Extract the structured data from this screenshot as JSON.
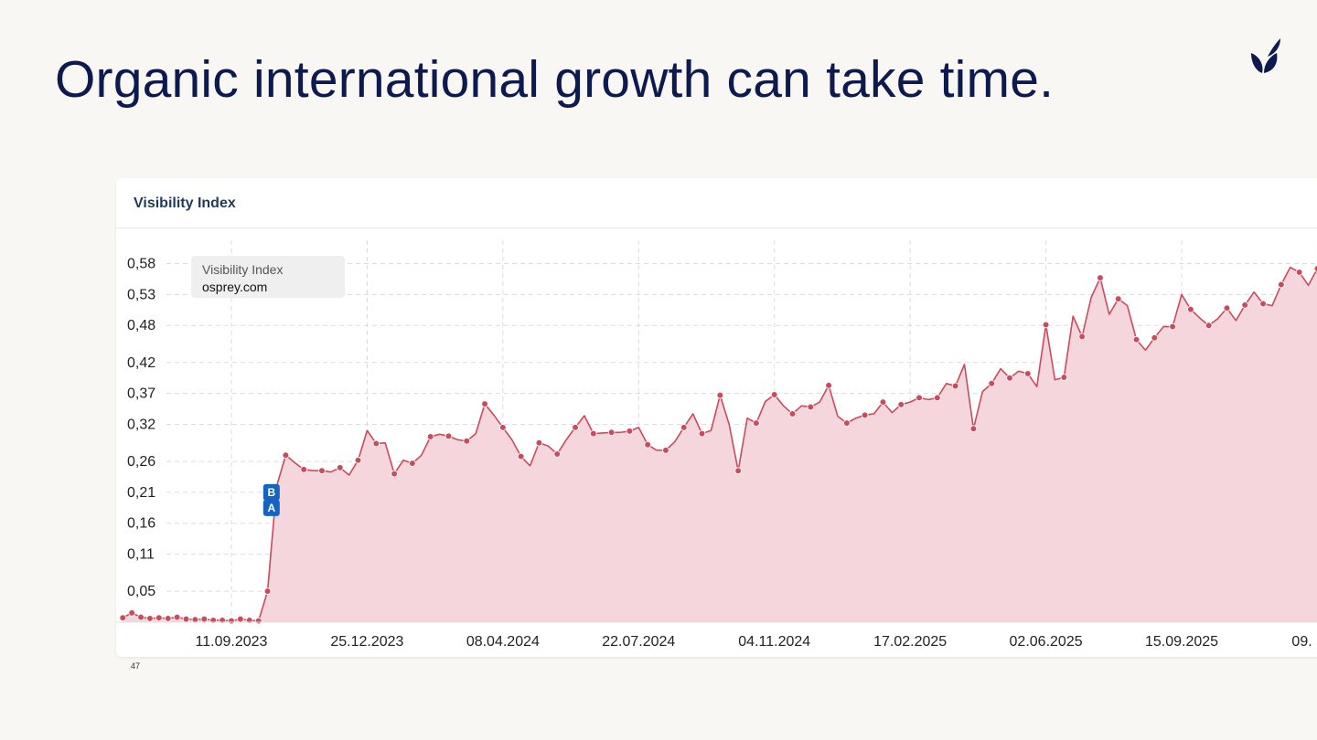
{
  "slide": {
    "title": "Organic international growth can take time.",
    "page_number": "47"
  },
  "colors": {
    "title": "#0d1a4f",
    "line": "#c94b5c",
    "fill": "#f5d6dc",
    "marker": "#1565c0"
  },
  "chart_data": {
    "type": "area",
    "title": "Visibility Index",
    "legend": {
      "name": "Visibility Index",
      "domain": "osprey.com",
      "placement": "top-left"
    },
    "grid": true,
    "y_ticks": [
      "0,05",
      "0,11",
      "0,16",
      "0,21",
      "0,26",
      "0,32",
      "0,37",
      "0,42",
      "0,48",
      "0,53",
      "0,58"
    ],
    "y_tick_values": [
      0.05,
      0.11,
      0.16,
      0.21,
      0.26,
      0.32,
      0.37,
      0.42,
      0.48,
      0.53,
      0.58
    ],
    "ylim": [
      0.0,
      0.6
    ],
    "x_ticks": [
      "11.09.2023",
      "25.12.2023",
      "08.04.2024",
      "22.07.2024",
      "04.11.2024",
      "17.02.2025",
      "02.06.2025",
      "15.09.2025",
      "09."
    ],
    "x_tick_dates": [
      "2023-09-11",
      "2023-12-25",
      "2024-04-08",
      "2024-07-22",
      "2024-11-04",
      "2025-02-17",
      "2025-06-02",
      "2025-09-15",
      "2025-12-29"
    ],
    "xlim": [
      "2023-06-19",
      "2026-01-04"
    ],
    "markers": [
      {
        "label": "B",
        "date": "2023-10-12",
        "value": 0.21
      },
      {
        "label": "A",
        "date": "2023-10-12",
        "value": 0.185
      }
    ],
    "series": [
      {
        "name": "osprey.com",
        "points": [
          [
            "2023-06-19",
            0.007
          ],
          [
            "2023-06-26",
            0.015
          ],
          [
            "2023-07-03",
            0.008
          ],
          [
            "2023-07-10",
            0.006
          ],
          [
            "2023-07-17",
            0.007
          ],
          [
            "2023-07-24",
            0.006
          ],
          [
            "2023-07-31",
            0.008
          ],
          [
            "2023-08-07",
            0.005
          ],
          [
            "2023-08-14",
            0.004
          ],
          [
            "2023-08-21",
            0.005
          ],
          [
            "2023-08-28",
            0.003
          ],
          [
            "2023-09-04",
            0.003
          ],
          [
            "2023-09-11",
            0.002
          ],
          [
            "2023-09-18",
            0.005
          ],
          [
            "2023-09-25",
            0.003
          ],
          [
            "2023-10-02",
            0.002
          ],
          [
            "2023-10-09",
            0.05
          ],
          [
            "2023-10-16",
            0.22
          ],
          [
            "2023-10-23",
            0.27
          ],
          [
            "2023-10-30",
            0.258
          ],
          [
            "2023-11-06",
            0.247
          ],
          [
            "2023-11-13",
            0.245
          ],
          [
            "2023-11-20",
            0.245
          ],
          [
            "2023-11-27",
            0.243
          ],
          [
            "2023-12-04",
            0.25
          ],
          [
            "2023-12-11",
            0.238
          ],
          [
            "2023-12-18",
            0.262
          ],
          [
            "2023-12-25",
            0.31
          ],
          [
            "2024-01-01",
            0.289
          ],
          [
            "2024-01-08",
            0.29
          ],
          [
            "2024-01-15",
            0.24
          ],
          [
            "2024-01-22",
            0.262
          ],
          [
            "2024-01-29",
            0.257
          ],
          [
            "2024-02-05",
            0.27
          ],
          [
            "2024-02-12",
            0.3
          ],
          [
            "2024-02-19",
            0.304
          ],
          [
            "2024-02-26",
            0.301
          ],
          [
            "2024-03-04",
            0.295
          ],
          [
            "2024-03-11",
            0.293
          ],
          [
            "2024-03-18",
            0.305
          ],
          [
            "2024-03-25",
            0.353
          ],
          [
            "2024-04-01",
            0.335
          ],
          [
            "2024-04-08",
            0.315
          ],
          [
            "2024-04-15",
            0.295
          ],
          [
            "2024-04-22",
            0.268
          ],
          [
            "2024-04-29",
            0.253
          ],
          [
            "2024-05-06",
            0.29
          ],
          [
            "2024-05-13",
            0.285
          ],
          [
            "2024-05-20",
            0.272
          ],
          [
            "2024-05-27",
            0.295
          ],
          [
            "2024-06-03",
            0.315
          ],
          [
            "2024-06-10",
            0.334
          ],
          [
            "2024-06-17",
            0.305
          ],
          [
            "2024-06-24",
            0.306
          ],
          [
            "2024-07-01",
            0.307
          ],
          [
            "2024-07-08",
            0.307
          ],
          [
            "2024-07-15",
            0.309
          ],
          [
            "2024-07-22",
            0.315
          ],
          [
            "2024-07-29",
            0.287
          ],
          [
            "2024-08-05",
            0.278
          ],
          [
            "2024-08-12",
            0.278
          ],
          [
            "2024-08-19",
            0.292
          ],
          [
            "2024-08-26",
            0.315
          ],
          [
            "2024-09-02",
            0.337
          ],
          [
            "2024-09-09",
            0.305
          ],
          [
            "2024-09-16",
            0.31
          ],
          [
            "2024-09-23",
            0.367
          ],
          [
            "2024-09-30",
            0.32
          ],
          [
            "2024-10-07",
            0.245
          ],
          [
            "2024-10-14",
            0.33
          ],
          [
            "2024-10-21",
            0.322
          ],
          [
            "2024-10-28",
            0.357
          ],
          [
            "2024-11-04",
            0.368
          ],
          [
            "2024-11-11",
            0.35
          ],
          [
            "2024-11-18",
            0.337
          ],
          [
            "2024-11-25",
            0.35
          ],
          [
            "2024-12-02",
            0.348
          ],
          [
            "2024-12-09",
            0.356
          ],
          [
            "2024-12-16",
            0.383
          ],
          [
            "2024-12-23",
            0.333
          ],
          [
            "2024-12-30",
            0.322
          ],
          [
            "2025-01-06",
            0.33
          ],
          [
            "2025-01-13",
            0.335
          ],
          [
            "2025-01-20",
            0.337
          ],
          [
            "2025-01-27",
            0.356
          ],
          [
            "2025-02-03",
            0.339
          ],
          [
            "2025-02-10",
            0.352
          ],
          [
            "2025-02-17",
            0.356
          ],
          [
            "2025-02-24",
            0.363
          ],
          [
            "2025-03-03",
            0.36
          ],
          [
            "2025-03-10",
            0.363
          ],
          [
            "2025-03-17",
            0.386
          ],
          [
            "2025-03-24",
            0.382
          ],
          [
            "2025-03-31",
            0.417
          ],
          [
            "2025-04-07",
            0.313
          ],
          [
            "2025-04-14",
            0.373
          ],
          [
            "2025-04-21",
            0.386
          ],
          [
            "2025-04-28",
            0.41
          ],
          [
            "2025-05-05",
            0.395
          ],
          [
            "2025-05-12",
            0.406
          ],
          [
            "2025-05-19",
            0.402
          ],
          [
            "2025-05-26",
            0.381
          ],
          [
            "2025-06-02",
            0.481
          ],
          [
            "2025-06-09",
            0.392
          ],
          [
            "2025-06-16",
            0.396
          ],
          [
            "2025-06-23",
            0.495
          ],
          [
            "2025-06-30",
            0.462
          ],
          [
            "2025-07-07",
            0.525
          ],
          [
            "2025-07-14",
            0.557
          ],
          [
            "2025-07-21",
            0.498
          ],
          [
            "2025-07-28",
            0.523
          ],
          [
            "2025-08-04",
            0.512
          ],
          [
            "2025-08-11",
            0.457
          ],
          [
            "2025-08-18",
            0.44
          ],
          [
            "2025-08-25",
            0.46
          ],
          [
            "2025-09-01",
            0.478
          ],
          [
            "2025-09-08",
            0.478
          ],
          [
            "2025-09-15",
            0.53
          ],
          [
            "2025-09-22",
            0.506
          ],
          [
            "2025-09-29",
            0.492
          ],
          [
            "2025-10-06",
            0.48
          ],
          [
            "2025-10-13",
            0.491
          ],
          [
            "2025-10-20",
            0.508
          ],
          [
            "2025-10-27",
            0.488
          ],
          [
            "2025-11-03",
            0.513
          ],
          [
            "2025-11-10",
            0.534
          ],
          [
            "2025-11-17",
            0.515
          ],
          [
            "2025-11-24",
            0.512
          ],
          [
            "2025-12-01",
            0.546
          ],
          [
            "2025-12-08",
            0.574
          ],
          [
            "2025-12-15",
            0.566
          ],
          [
            "2025-12-22",
            0.545
          ],
          [
            "2025-12-29",
            0.572
          ],
          [
            "2026-01-05",
            0.572
          ]
        ]
      }
    ]
  }
}
